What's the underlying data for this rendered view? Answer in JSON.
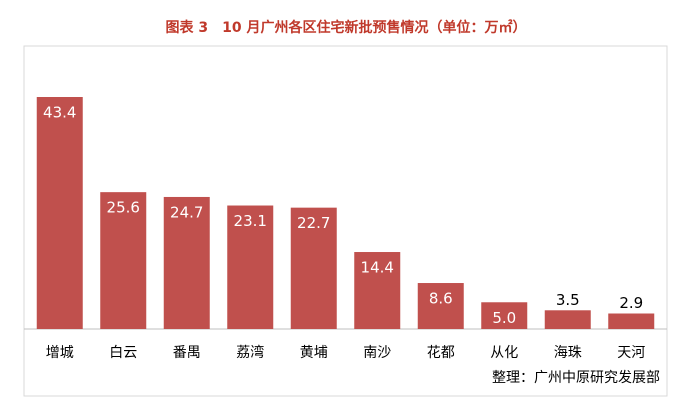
{
  "chart_data": {
    "type": "bar",
    "title": "图表 3　10 月广州各区住宅新批预售情况（单位：万㎡）",
    "categories": [
      "增城",
      "白云",
      "番禺",
      "荔湾",
      "黄埔",
      "南沙",
      "花都",
      "从化",
      "海珠",
      "天河"
    ],
    "values": [
      43.4,
      25.6,
      24.7,
      23.1,
      22.7,
      14.4,
      8.6,
      5.0,
      3.5,
      2.9
    ],
    "value_labels": [
      "43.4",
      "25.6",
      "24.7",
      "23.1",
      "22.7",
      "14.4",
      "8.6",
      "5.0",
      "3.5",
      "2.9"
    ],
    "color": "#c0504d",
    "source": "整理：广州中原研究发展部"
  }
}
